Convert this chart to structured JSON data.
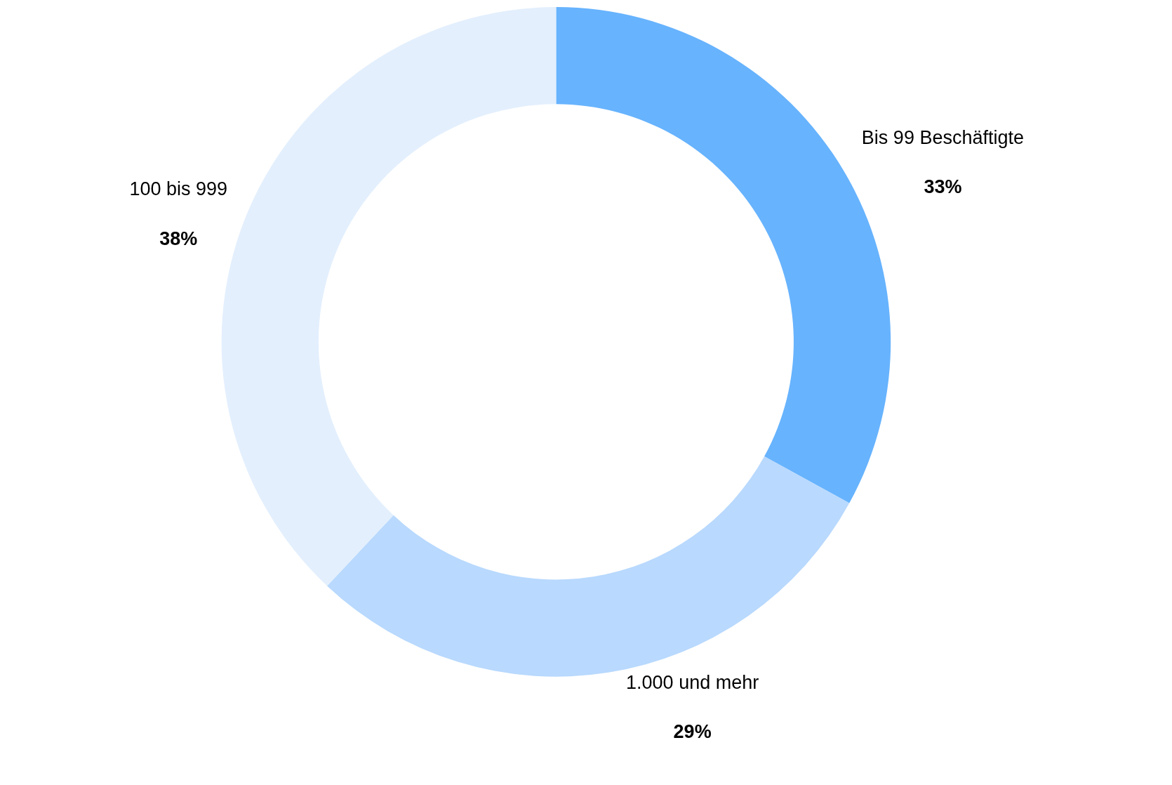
{
  "chart_data": {
    "type": "donut",
    "categories": [
      "Bis 99 Beschäftigte",
      "1.000 und mehr",
      "100 bis 999"
    ],
    "values": [
      33,
      29,
      38
    ],
    "value_labels": [
      "33%",
      "29%",
      "38%"
    ],
    "colors": [
      "#67b3fe",
      "#b9d9fe",
      "#e3effd"
    ],
    "legend": false
  }
}
